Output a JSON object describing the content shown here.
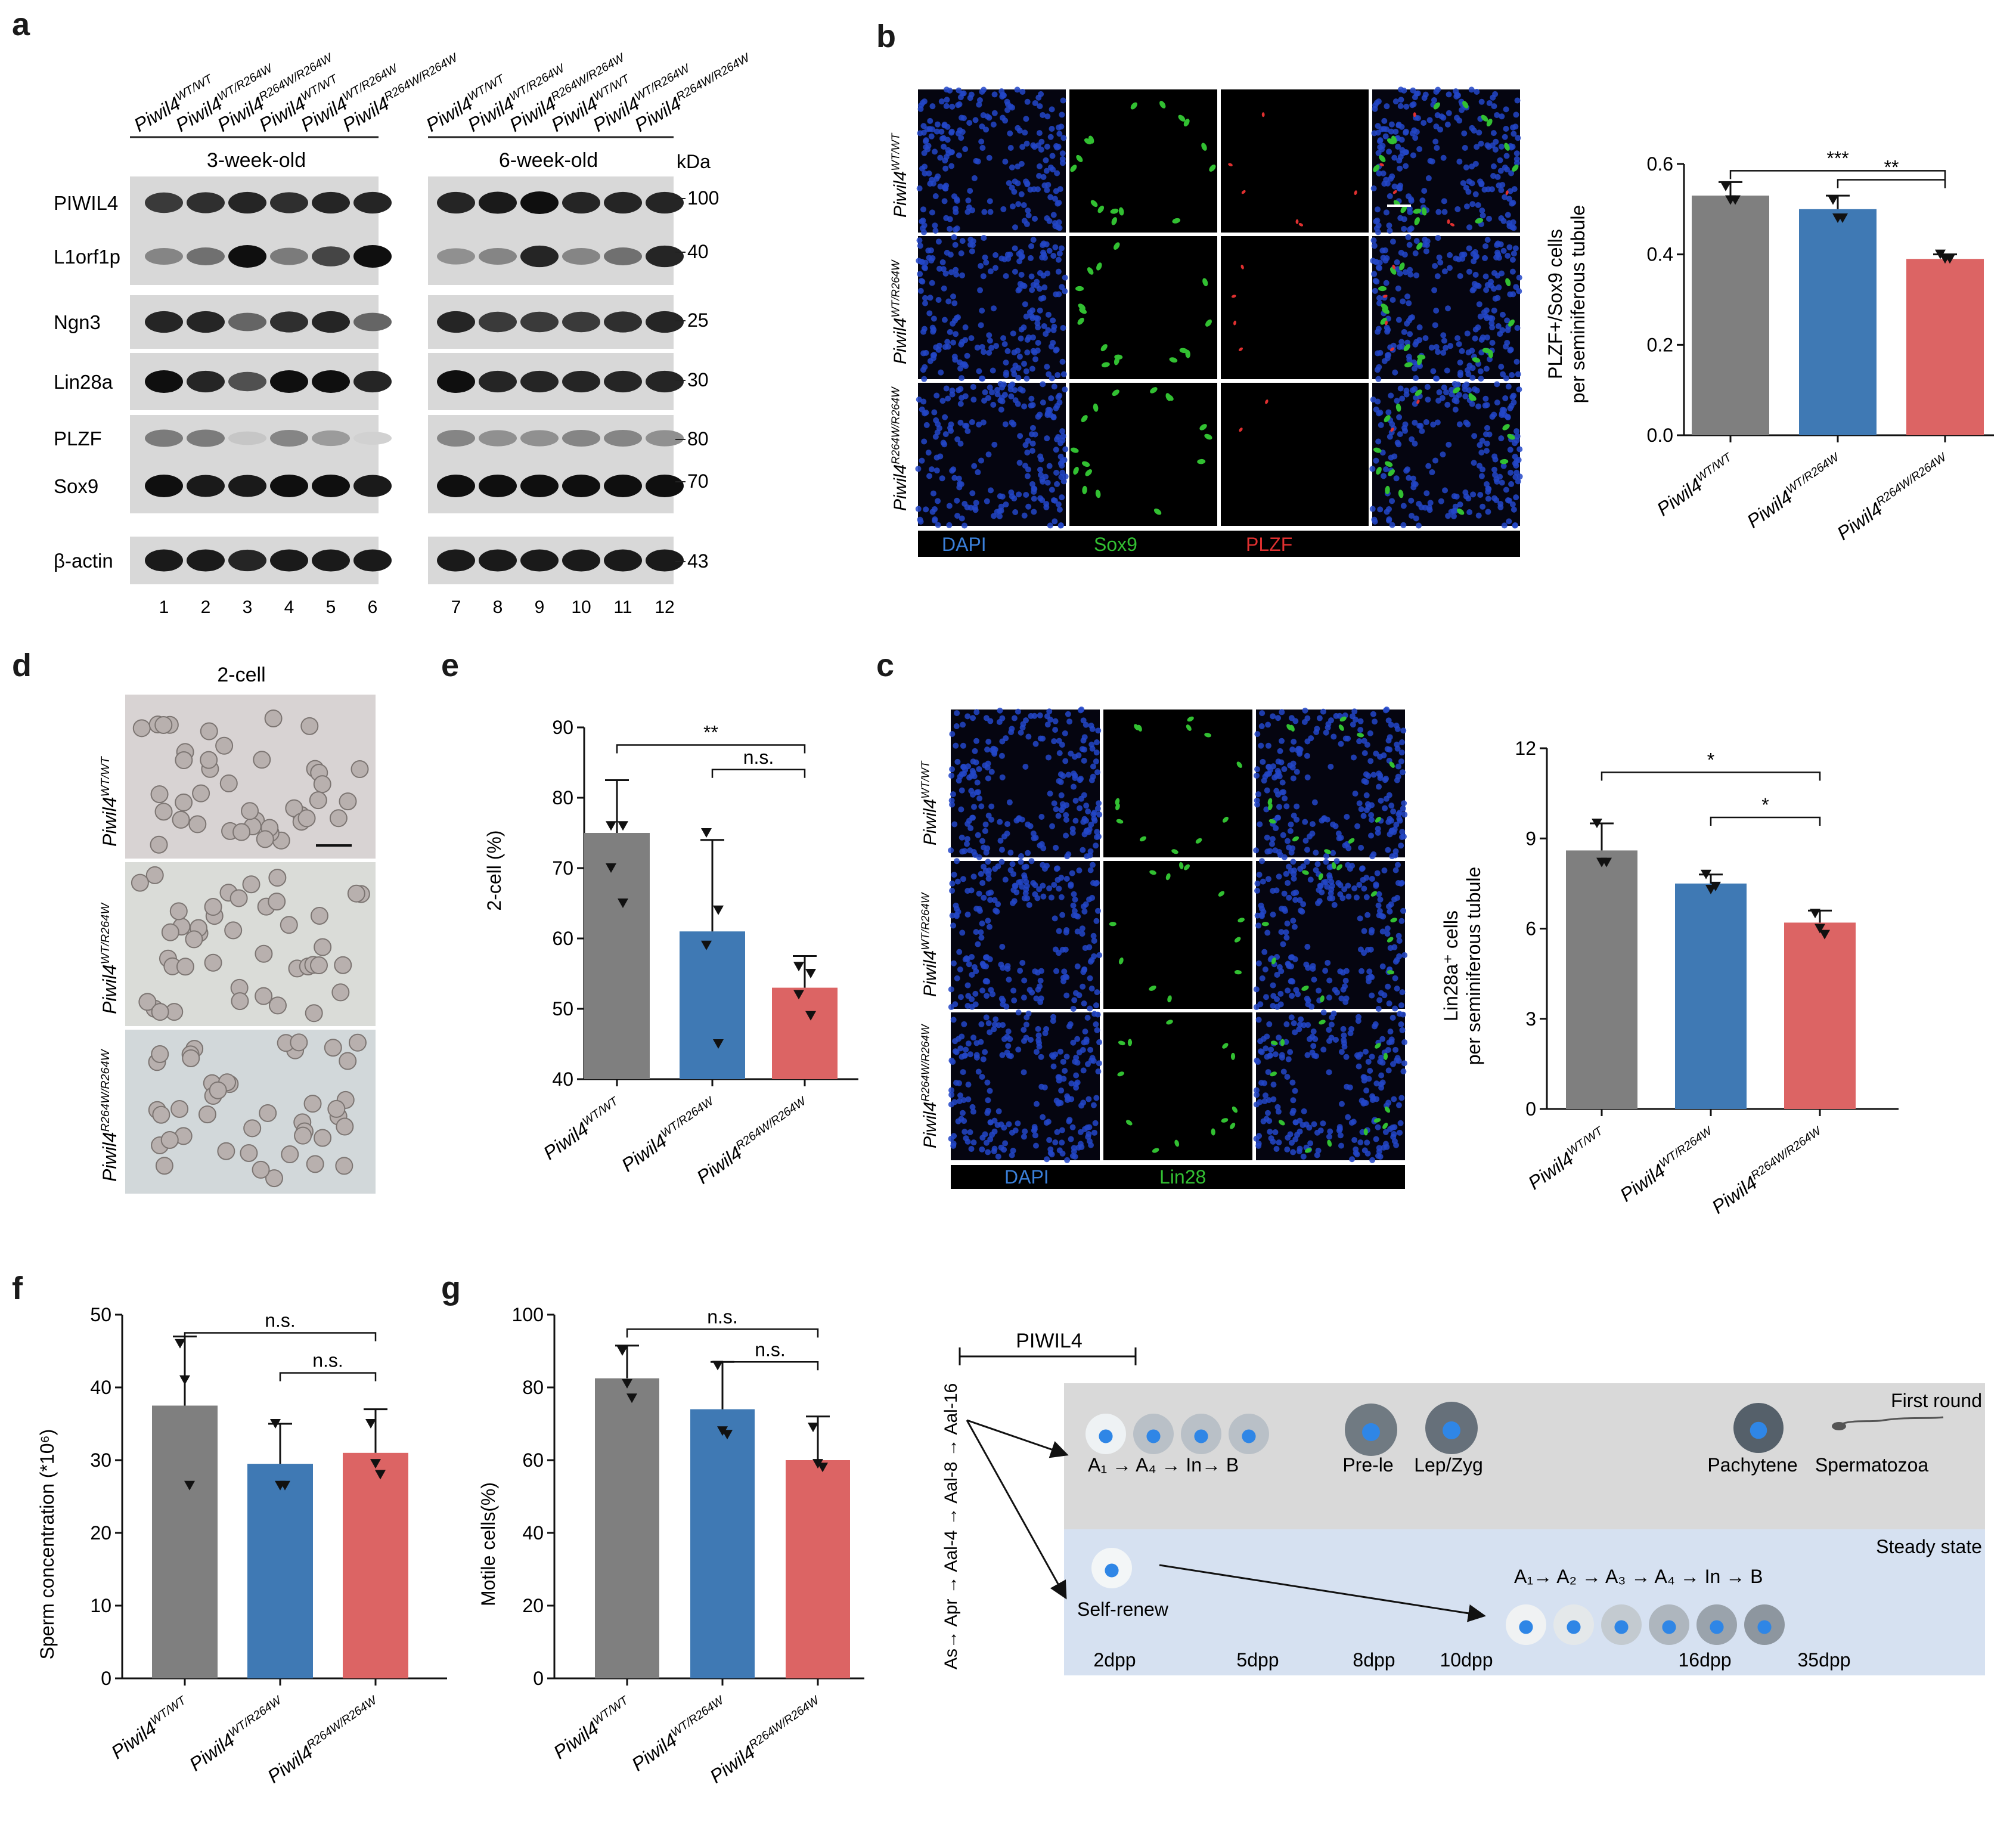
{
  "panel_labels": [
    "a",
    "b",
    "c",
    "d",
    "e",
    "f",
    "g"
  ],
  "genotype_base": "Piwil4",
  "genotypes": [
    "WT/WT",
    "WT/R264W",
    "R264W/R264W"
  ],
  "colors": {
    "wt": "#7f7f7f",
    "het": "#3f79b4",
    "hom": "#dc6464",
    "dapi": "#3a7fd9",
    "sox9": "#32c032",
    "plzf": "#e03030"
  },
  "western": {
    "groups": [
      "3-week-old",
      "6-week-old"
    ],
    "kda_label": "kDa",
    "rows": [
      {
        "name": "PIWIL4",
        "kda": "100"
      },
      {
        "name": "L1orf1p",
        "kda": "40"
      },
      {
        "name": "Ngn3",
        "kda": "25"
      },
      {
        "name": "Lin28a",
        "kda": "30"
      },
      {
        "name": "PLZF",
        "kda": "80"
      },
      {
        "name": "Sox9",
        "kda": "70"
      },
      {
        "name": "β-actin",
        "kda": "43"
      }
    ],
    "lanes": [
      "1",
      "2",
      "3",
      "4",
      "5",
      "6",
      "7",
      "8",
      "9",
      "10",
      "11",
      "12"
    ],
    "lane_genotypes": [
      "WT/WT",
      "WT/R264W",
      "R264W/R264W",
      "WT/WT",
      "WT/R264W",
      "R264W/R264W",
      "WT/WT",
      "WT/R264W",
      "R264W/R264W",
      "WT/WT",
      "WT/R264W",
      "R264W/R264W"
    ]
  },
  "panel_b": {
    "channels": [
      "DAPI",
      "Sox9",
      "PLZF"
    ],
    "ylabel": [
      "PLZF+/Sox9 cells",
      "per seminiferous tubule"
    ],
    "sig": [
      "***",
      "**"
    ]
  },
  "panel_c": {
    "channels": [
      "DAPI",
      "Lin28"
    ],
    "ylabel": [
      "Lin28a⁺ cells",
      "per seminiferous tubule"
    ],
    "sig": [
      "*",
      "*"
    ]
  },
  "panel_d": {
    "title": "2-cell"
  },
  "panel_e": {
    "ylabel": "2-cell (%)",
    "sig": [
      "**",
      "n.s."
    ]
  },
  "panel_f": {
    "ylabel": "Sperm concentration (*10⁶)",
    "sig": [
      "n.s.",
      "n.s."
    ]
  },
  "panel_g": {
    "ylabel": "Motile cells(%)",
    "sig": [
      "n.s.",
      "n.s."
    ]
  },
  "chart_data": [
    {
      "type": "bar",
      "panel": "b",
      "categories": [
        "Piwil4 WT/WT",
        "Piwil4 WT/R264W",
        "Piwil4 R264W/R264W"
      ],
      "values": [
        0.53,
        0.5,
        0.39
      ],
      "errors": [
        0.03,
        0.03,
        0.01
      ],
      "points": [
        [
          0.55,
          0.52,
          0.52
        ],
        [
          0.52,
          0.48,
          0.48
        ],
        [
          0.4,
          0.39,
          0.39
        ]
      ],
      "ylim": [
        0,
        0.6
      ],
      "yticks": [
        "0.0",
        "0.2",
        "0.4",
        "0.6"
      ]
    },
    {
      "type": "bar",
      "panel": "c",
      "categories": [
        "Piwil4 WT/WT",
        "Piwil4 WT/R264W",
        "Piwil4 R264W/R264W"
      ],
      "values": [
        8.6,
        7.5,
        6.2
      ],
      "errors": [
        0.9,
        0.3,
        0.4
      ],
      "points": [
        [
          9.5,
          8.2,
          8.2
        ],
        [
          7.8,
          7.3,
          7.4
        ],
        [
          6.5,
          6.0,
          5.8
        ]
      ],
      "ylim": [
        0,
        12
      ],
      "yticks": [
        "0",
        "3",
        "6",
        "9",
        "12"
      ]
    },
    {
      "type": "bar",
      "panel": "e",
      "categories": [
        "Piwil4 WT/WT",
        "Piwil4 WT/R264W",
        "Piwil4 R264W/R264W"
      ],
      "values": [
        75,
        61,
        53
      ],
      "errors": [
        7.5,
        13,
        4.5
      ],
      "points": [
        [
          76,
          76,
          70,
          65
        ],
        [
          75,
          64,
          59,
          45
        ],
        [
          56,
          55,
          52,
          49
        ]
      ],
      "ylim": [
        40,
        90
      ],
      "yticks": [
        "40",
        "50",
        "60",
        "70",
        "80",
        "90"
      ]
    },
    {
      "type": "bar",
      "panel": "f",
      "categories": [
        "Piwil4 WT/WT",
        "Piwil4 WT/R264W",
        "Piwil4 R264W/R264W"
      ],
      "values": [
        37.5,
        29.5,
        31
      ],
      "errors": [
        9.5,
        5.5,
        6
      ],
      "points": [
        [
          46,
          41,
          26.5
        ],
        [
          35,
          26.5,
          26.5
        ],
        [
          35,
          29.5,
          28
        ]
      ],
      "ylim": [
        0,
        50
      ],
      "yticks": [
        "0",
        "10",
        "20",
        "30",
        "40",
        "50"
      ]
    },
    {
      "type": "bar",
      "panel": "g",
      "categories": [
        "Piwil4 WT/WT",
        "Piwil4 WT/R264W",
        "Piwil4 R264W/R264W"
      ],
      "values": [
        82.5,
        74,
        60
      ],
      "errors": [
        9,
        13,
        12
      ],
      "points": [
        [
          90,
          81,
          77
        ],
        [
          86,
          68,
          67
        ],
        [
          69,
          59,
          58
        ]
      ],
      "ylim": [
        0,
        100
      ],
      "yticks": [
        "0",
        "20",
        "40",
        "60",
        "80",
        "100"
      ]
    }
  ],
  "schematic": {
    "piwil4_label": "PIWIL4",
    "left_chain": "As→ Apr → Aal-4 → Aal-8 → Aal-16",
    "first_round": "First round",
    "steady_state": "Steady state",
    "labels_top": [
      "A₁ → A₄ → In→ B",
      "Pre-le",
      "Lep/Zyg",
      "Pachytene",
      "Spermatozoa"
    ],
    "self_renew": "Self-renew",
    "steady_chain": "A₁→ A₂ → A₃ → A₄ → In → B",
    "days": [
      "2dpp",
      "5dpp",
      "8dpp",
      "10dpp",
      "16dpp",
      "35dpp"
    ]
  }
}
